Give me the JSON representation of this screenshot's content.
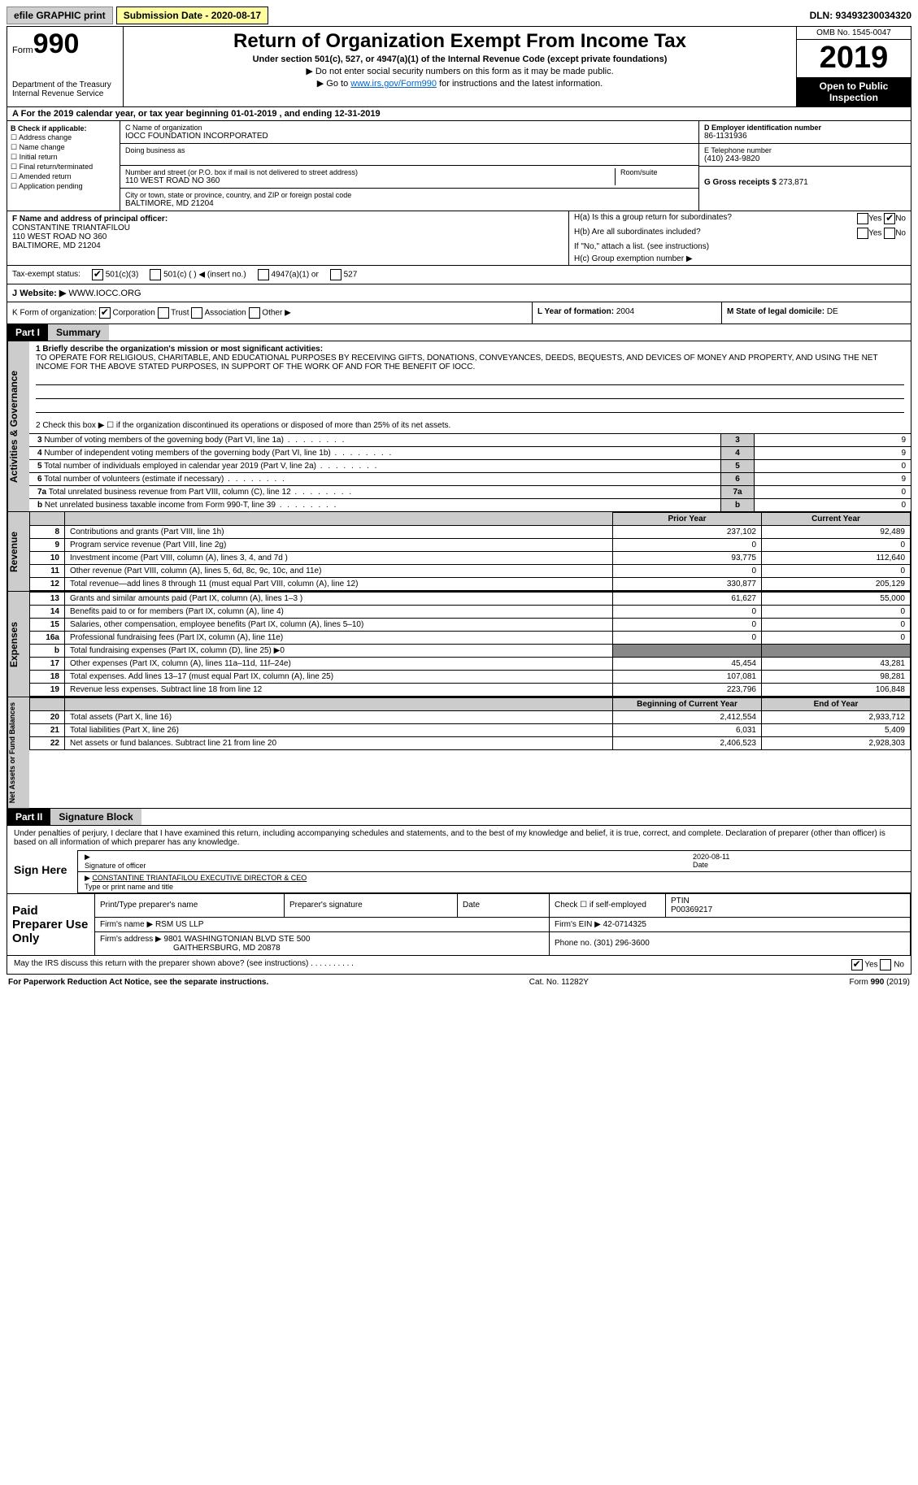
{
  "top": {
    "efile": "efile GRAPHIC print",
    "submission": "Submission Date - 2020-08-17",
    "dln": "DLN: 93493230034320"
  },
  "header": {
    "form_label": "Form",
    "form_num": "990",
    "dept": "Department of the Treasury\nInternal Revenue Service",
    "title": "Return of Organization Exempt From Income Tax",
    "subtitle": "Under section 501(c), 527, or 4947(a)(1) of the Internal Revenue Code (except private foundations)",
    "note1": "▶ Do not enter social security numbers on this form as it may be made public.",
    "note2_pre": "▶ Go to ",
    "note2_link": "www.irs.gov/Form990",
    "note2_post": " for instructions and the latest information.",
    "omb": "OMB No. 1545-0047",
    "year": "2019",
    "open": "Open to Public Inspection"
  },
  "period": "For the 2019 calendar year, or tax year beginning 01-01-2019   , and ending 12-31-2019",
  "boxB": {
    "title": "B Check if applicable:",
    "opts": [
      "Address change",
      "Name change",
      "Initial return",
      "Final return/terminated",
      "Amended return",
      "Application pending"
    ]
  },
  "boxC": {
    "label": "C Name of organization",
    "name": "IOCC FOUNDATION INCORPORATED",
    "dba": "Doing business as",
    "addr_label": "Number and street (or P.O. box if mail is not delivered to street address)",
    "room": "Room/suite",
    "addr": "110 WEST ROAD NO 360",
    "city_label": "City or town, state or province, country, and ZIP or foreign postal code",
    "city": "BALTIMORE, MD  21204"
  },
  "boxD": {
    "label": "D Employer identification number",
    "val": "86-1131936"
  },
  "boxE": {
    "label": "E Telephone number",
    "val": "(410) 243-9820"
  },
  "boxG": {
    "label": "G Gross receipts $",
    "val": "273,871"
  },
  "boxF": {
    "label": "F  Name and address of principal officer:",
    "name": "CONSTANTINE TRIANTAFILOU",
    "addr": "110 WEST ROAD NO 360",
    "city": "BALTIMORE, MD  21204"
  },
  "boxH": {
    "a": "H(a)  Is this a group return for subordinates?",
    "b": "H(b)  Are all subordinates included?",
    "note": "If \"No,\" attach a list. (see instructions)",
    "c": "H(c)  Group exemption number ▶",
    "yes": "Yes",
    "no": "No"
  },
  "taxExempt": {
    "label": "Tax-exempt status:",
    "o1": "501(c)(3)",
    "o2": "501(c) (  ) ◀ (insert no.)",
    "o3": "4947(a)(1) or",
    "o4": "527"
  },
  "website": {
    "label": "Website: ▶",
    "val": "WWW.IOCC.ORG"
  },
  "boxK": {
    "label": "K Form of organization:",
    "o1": "Corporation",
    "o2": "Trust",
    "o3": "Association",
    "o4": "Other ▶"
  },
  "boxL": {
    "label": "L Year of formation:",
    "val": "2004"
  },
  "boxM": {
    "label": "M State of legal domicile:",
    "val": "DE"
  },
  "part1": {
    "hdr": "Part I",
    "title": "Summary"
  },
  "activities": {
    "vtab": "Activities & Governance",
    "brief_label": "1  Briefly describe the organization's mission or most significant activities:",
    "brief": "TO OPERATE FOR RELIGIOUS, CHARITABLE, AND EDUCATIONAL PURPOSES BY RECEIVING GIFTS, DONATIONS, CONVEYANCES, DEEDS, BEQUESTS, AND DEVICES OF MONEY AND PROPERTY, AND USING THE NET INCOME FOR THE ABOVE STATED PURPOSES, IN SUPPORT OF THE WORK OF AND FOR THE BENEFIT OF IOCC.",
    "l2": "2   Check this box ▶ ☐  if the organization discontinued its operations or disposed of more than 25% of its net assets.",
    "rows": [
      {
        "n": "3",
        "t": "Number of voting members of the governing body (Part VI, line 1a)",
        "v": "9"
      },
      {
        "n": "4",
        "t": "Number of independent voting members of the governing body (Part VI, line 1b)",
        "v": "9"
      },
      {
        "n": "5",
        "t": "Total number of individuals employed in calendar year 2019 (Part V, line 2a)",
        "v": "0"
      },
      {
        "n": "6",
        "t": "Total number of volunteers (estimate if necessary)",
        "v": "9"
      },
      {
        "n": "7a",
        "t": "Total unrelated business revenue from Part VIII, column (C), line 12",
        "v": "0"
      },
      {
        "n": "b",
        "t": "Net unrelated business taxable income from Form 990-T, line 39",
        "v": "0"
      }
    ]
  },
  "revenue": {
    "vtab": "Revenue",
    "h_prior": "Prior Year",
    "h_cur": "Current Year",
    "rows": [
      {
        "n": "8",
        "t": "Contributions and grants (Part VIII, line 1h)",
        "p": "237,102",
        "c": "92,489"
      },
      {
        "n": "9",
        "t": "Program service revenue (Part VIII, line 2g)",
        "p": "0",
        "c": "0"
      },
      {
        "n": "10",
        "t": "Investment income (Part VIII, column (A), lines 3, 4, and 7d )",
        "p": "93,775",
        "c": "112,640"
      },
      {
        "n": "11",
        "t": "Other revenue (Part VIII, column (A), lines 5, 6d, 8c, 9c, 10c, and 11e)",
        "p": "0",
        "c": "0"
      },
      {
        "n": "12",
        "t": "Total revenue—add lines 8 through 11 (must equal Part VIII, column (A), line 12)",
        "p": "330,877",
        "c": "205,129"
      }
    ]
  },
  "expenses": {
    "vtab": "Expenses",
    "rows": [
      {
        "n": "13",
        "t": "Grants and similar amounts paid (Part IX, column (A), lines 1–3 )",
        "p": "61,627",
        "c": "55,000"
      },
      {
        "n": "14",
        "t": "Benefits paid to or for members (Part IX, column (A), line 4)",
        "p": "0",
        "c": "0"
      },
      {
        "n": "15",
        "t": "Salaries, other compensation, employee benefits (Part IX, column (A), lines 5–10)",
        "p": "0",
        "c": "0"
      },
      {
        "n": "16a",
        "t": "Professional fundraising fees (Part IX, column (A), line 11e)",
        "p": "0",
        "c": "0"
      },
      {
        "n": "b",
        "t": "Total fundraising expenses (Part IX, column (D), line 25) ▶0",
        "p": "",
        "c": "",
        "grey": true
      },
      {
        "n": "17",
        "t": "Other expenses (Part IX, column (A), lines 11a–11d, 11f–24e)",
        "p": "45,454",
        "c": "43,281"
      },
      {
        "n": "18",
        "t": "Total expenses. Add lines 13–17 (must equal Part IX, column (A), line 25)",
        "p": "107,081",
        "c": "98,281"
      },
      {
        "n": "19",
        "t": "Revenue less expenses. Subtract line 18 from line 12",
        "p": "223,796",
        "c": "106,848"
      }
    ]
  },
  "netassets": {
    "vtab": "Net Assets or Fund Balances",
    "h_beg": "Beginning of Current Year",
    "h_end": "End of Year",
    "rows": [
      {
        "n": "20",
        "t": "Total assets (Part X, line 16)",
        "p": "2,412,554",
        "c": "2,933,712"
      },
      {
        "n": "21",
        "t": "Total liabilities (Part X, line 26)",
        "p": "6,031",
        "c": "5,409"
      },
      {
        "n": "22",
        "t": "Net assets or fund balances. Subtract line 21 from line 20",
        "p": "2,406,523",
        "c": "2,928,303"
      }
    ]
  },
  "part2": {
    "hdr": "Part II",
    "title": "Signature Block"
  },
  "sig": {
    "decl": "Under penalties of perjury, I declare that I have examined this return, including accompanying schedules and statements, and to the best of my knowledge and belief, it is true, correct, and complete. Declaration of preparer (other than officer) is based on all information of which preparer has any knowledge.",
    "here": "Sign Here",
    "sig_label": "Signature of officer",
    "date": "2020-08-11",
    "date_label": "Date",
    "name": "CONSTANTINE TRIANTAFILOU  EXECUTIVE DIRECTOR & CEO",
    "name_label": "Type or print name and title"
  },
  "paid": {
    "label": "Paid Preparer Use Only",
    "h1": "Print/Type preparer's name",
    "h2": "Preparer's signature",
    "h3": "Date",
    "h4": "Check ☐ if self-employed",
    "h5": "PTIN",
    "ptin": "P00369217",
    "firm_name_l": "Firm's name    ▶",
    "firm_name": "RSM US LLP",
    "firm_ein_l": "Firm's EIN ▶",
    "firm_ein": "42-0714325",
    "firm_addr_l": "Firm's address ▶",
    "firm_addr": "9801 WASHINGTONIAN BLVD STE 500",
    "firm_city": "GAITHERSBURG, MD  20878",
    "phone_l": "Phone no.",
    "phone": "(301) 296-3600"
  },
  "discuss": {
    "q": "May the IRS discuss this return with the preparer shown above? (see instructions)",
    "yes": "Yes",
    "no": "No"
  },
  "footer": {
    "l": "For Paperwork Reduction Act Notice, see the separate instructions.",
    "m": "Cat. No. 11282Y",
    "r": "Form 990 (2019)"
  }
}
